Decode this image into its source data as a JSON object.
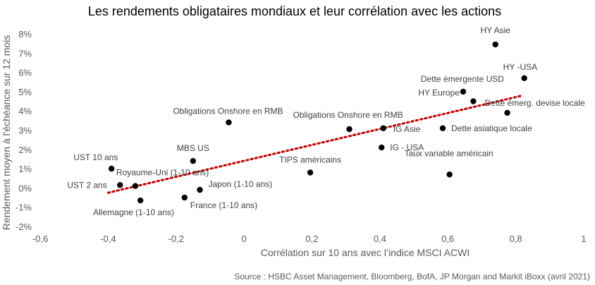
{
  "chart_data": {
    "type": "scatter",
    "title": "Les rendements obligataires mondiaux et leur corrélation avec les actions",
    "xlabel": "Corrélation sur 10 ans avec l’indice MSCI ACWI",
    "ylabel": "Rendement moyen à l'échéance sur 12 mois",
    "source": "Source : HSBC Asset Management, Bloomberg, BofA, JP Morgan and Markit iBoxx (avril 2021)",
    "xlim": [
      -0.6,
      1.0
    ],
    "ylim": [
      -2,
      8
    ],
    "x_ticks": [
      "-0,6",
      "-0,4",
      "-0,2",
      "0",
      "0,2",
      "0,4",
      "0,6",
      "0,8",
      "1"
    ],
    "y_ticks": [
      "-2%",
      "-1%",
      "0%",
      "1%",
      "2%",
      "3%",
      "4%",
      "5%",
      "6%",
      "7%",
      "8%"
    ],
    "grid": false,
    "trendline": {
      "style": "dotted",
      "color": "#c00000",
      "x": [
        -0.4,
        0.82
      ],
      "y": [
        -0.25,
        4.8
      ]
    },
    "marker_color": "#000000",
    "points": [
      {
        "label": "HY Asie",
        "x": 0.74,
        "y": 7.45
      },
      {
        "label": "HY -USA",
        "x": 0.825,
        "y": 5.7
      },
      {
        "label": "Dette émergente USD",
        "x": 0.645,
        "y": 5.0
      },
      {
        "label": "HY Europe",
        "x": 0.675,
        "y": 4.5
      },
      {
        "label": "Dette émerg. devise locale",
        "x": 0.775,
        "y": 3.9
      },
      {
        "label": "Dette asiatique locale",
        "x": 0.585,
        "y": 3.1
      },
      {
        "label": "IG Asie",
        "x": 0.41,
        "y": 3.1
      },
      {
        "label": "Obligations Onshore en RMB",
        "x": 0.31,
        "y": 3.05
      },
      {
        "label": "IG - USA",
        "x": 0.405,
        "y": 2.1
      },
      {
        "label": "Taux variable américain",
        "x": 0.605,
        "y": 0.7
      },
      {
        "label": "TIPS américains",
        "x": 0.195,
        "y": 0.8
      },
      {
        "label": "Obligations Onshore en RMB",
        "x": -0.045,
        "y": 3.4
      },
      {
        "label": "MBS US",
        "x": -0.15,
        "y": 1.4
      },
      {
        "label": "UST 10 ans",
        "x": -0.39,
        "y": 1.0
      },
      {
        "label": "Royaume-Uni (1-10 ans)",
        "x": -0.32,
        "y": 0.1
      },
      {
        "label": "UST 2 ans",
        "x": -0.365,
        "y": 0.15
      },
      {
        "label": "Japon (1-10 ans)",
        "x": -0.13,
        "y": -0.1
      },
      {
        "label": "France (1-10 ans)",
        "x": -0.175,
        "y": -0.5
      },
      {
        "label": "Allemagne (1-10 ans)",
        "x": -0.305,
        "y": -0.65
      }
    ]
  }
}
